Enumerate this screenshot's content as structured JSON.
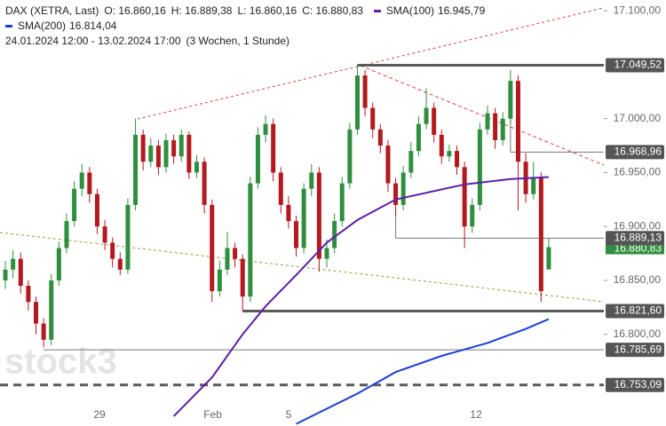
{
  "chart_data": {
    "type": "candlestick",
    "instrument": "DAX (XETRA, Last)",
    "ohlc_labels": [
      "O: 16.860,16",
      "H: 16.889,38",
      "L: 16.860,16",
      "C: 16.880,83"
    ],
    "period": "24.01.2024 12:00 - 13.02.2024 17:00",
    "period_note": "(3 Wochen, 1 Stunde)",
    "watermark": "stock3",
    "colors": {
      "up": "#2f8f3f",
      "down": "#b3191e"
    },
    "ylim": [
      16715,
      17110
    ],
    "xlim": [
      -0.7,
      78.2
    ],
    "yticks": [
      {
        "value": 17100,
        "label": "17.100,00"
      },
      {
        "value": 17000,
        "label": "17.000,00"
      },
      {
        "value": 16950,
        "label": "16.950,00"
      },
      {
        "value": 16900,
        "label": "16.900,00"
      },
      {
        "value": 16850,
        "label": "16.850,00"
      },
      {
        "value": 16800,
        "label": "16.800,00"
      }
    ],
    "xticks": [
      {
        "value": 12.3,
        "label": "29"
      },
      {
        "value": 27.1,
        "label": "Feb"
      },
      {
        "value": 37,
        "label": "5"
      },
      {
        "value": 61.5,
        "label": "12"
      }
    ],
    "open": [
      16850,
      16860,
      16870,
      16845,
      16830,
      16810,
      16795,
      16850,
      16880,
      16905,
      16935,
      16950,
      16930,
      16900,
      16885,
      16870,
      16860,
      16920,
      16985,
      16960,
      16975,
      16955,
      16980,
      16965,
      16985,
      16950,
      16960,
      16920,
      16840,
      16860,
      16880,
      16870,
      16835,
      16940,
      16985,
      16995,
      16950,
      16920,
      16905,
      16880,
      16935,
      16950,
      16870,
      16880,
      16905,
      16940,
      16990,
      17040,
      17010,
      16990,
      16975,
      16940,
      16920,
      16950,
      16970,
      16995,
      17010,
      16985,
      16965,
      16970,
      16955,
      16900,
      16920,
      16990,
      17005,
      16980,
      17000,
      17035,
      16960,
      16930,
      16945,
      16860.16
    ],
    "high": [
      16868,
      16878,
      16876,
      16850,
      16835,
      16815,
      16856,
      16886,
      16912,
      16942,
      16958,
      16955,
      16935,
      16906,
      16890,
      16876,
      16926,
      17000,
      16990,
      16982,
      16980,
      16986,
      16985,
      16990,
      16988,
      16966,
      16964,
      16925,
      16868,
      16895,
      16885,
      16874,
      16946,
      16992,
      17003,
      17000,
      16955,
      16928,
      16910,
      16940,
      16958,
      16955,
      16888,
      16912,
      16946,
      16996,
      17049.52,
      17045,
      17015,
      16995,
      16980,
      16945,
      16956,
      16978,
      17002,
      17028,
      17015,
      16990,
      16976,
      16975,
      16960,
      16926,
      16996,
      17012,
      17010,
      17006,
      17045,
      17040,
      16968,
      16960,
      16950,
      16889.38
    ],
    "low": [
      16842,
      16852,
      16838,
      16822,
      16800,
      16788,
      16790,
      16845,
      16875,
      16900,
      16928,
      16922,
      16893,
      16878,
      16862,
      16855,
      16856,
      16915,
      16952,
      16955,
      16948,
      16950,
      16958,
      16960,
      16944,
      16945,
      16912,
      16830,
      16835,
      16855,
      16862,
      16821.6,
      16830,
      16935,
      16978,
      16942,
      16912,
      16898,
      16872,
      16875,
      16928,
      16858,
      16862,
      16875,
      16900,
      16935,
      16985,
      17002,
      16982,
      16968,
      16932,
      16910,
      16915,
      16945,
      16965,
      16990,
      16978,
      16958,
      16960,
      16948,
      16880,
      16894,
      16915,
      16985,
      16972,
      16975,
      16995,
      16915,
      16922,
      16925,
      16830,
      16860.16
    ],
    "close": [
      16860,
      16870,
      16845,
      16830,
      16810,
      16795,
      16850,
      16880,
      16905,
      16935,
      16950,
      16930,
      16900,
      16885,
      16870,
      16860,
      16920,
      16985,
      16960,
      16975,
      16955,
      16980,
      16965,
      16985,
      16950,
      16960,
      16920,
      16840,
      16860,
      16880,
      16870,
      16835,
      16940,
      16985,
      16995,
      16950,
      16920,
      16905,
      16880,
      16935,
      16950,
      16870,
      16880,
      16905,
      16940,
      16990,
      17040,
      17010,
      16990,
      16975,
      16940,
      16920,
      16950,
      16970,
      16995,
      17010,
      16985,
      16965,
      16970,
      16955,
      16900,
      16920,
      16990,
      17005,
      16980,
      17000,
      17035,
      16960,
      16930,
      16945,
      16840,
      16880.83
    ],
    "series": [
      {
        "name": "SMA(100)",
        "value_label": "16.945,79",
        "color": "#5b1fa8",
        "x": [
          22,
          27,
          31,
          34,
          38,
          42,
          46,
          51,
          60,
          66,
          71
        ],
        "values": [
          16724,
          16760,
          16800,
          16826,
          16855,
          16885,
          16906,
          16925,
          16939,
          16944,
          16945.79
        ]
      },
      {
        "name": "SMA(200)",
        "value_label": "16.814,04",
        "color": "#1b3fd9",
        "x": [
          38,
          46,
          51,
          57,
          63,
          68,
          71
        ],
        "values": [
          16717,
          16745,
          16765,
          16780,
          16792,
          16805,
          16814.04
        ]
      }
    ],
    "levels": [
      {
        "value": 17049.52,
        "label": "17.049,52"
      },
      {
        "value": 16968.96,
        "label": "16.968,96"
      },
      {
        "value": 16889.13,
        "label": "16.889,13"
      },
      {
        "value": 16821.6,
        "label": "16.821,60"
      },
      {
        "value": 16785.69,
        "label": "16.785,69"
      },
      {
        "value": 16753.09,
        "label": "16.753,09"
      }
    ],
    "last_price": {
      "value": 16880.83,
      "label": "16.880,83"
    }
  }
}
